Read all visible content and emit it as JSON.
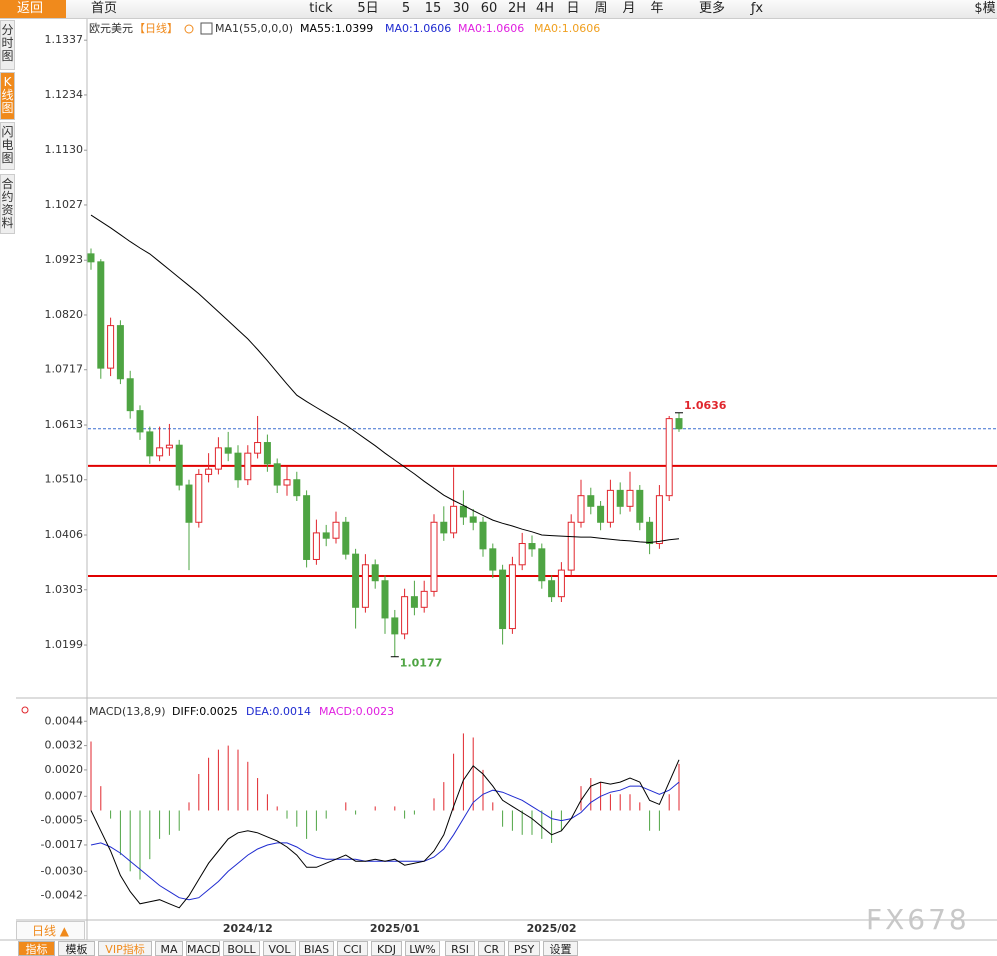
{
  "toolbar": [
    "返回",
    "首页",
    "tick",
    "5日",
    "5",
    "15",
    "30",
    "60",
    "2H",
    "4H",
    "日",
    "周",
    "月",
    "年",
    "更多",
    "ƒx",
    "$模"
  ],
  "side_tabs": [
    "分时图",
    "K线图",
    "闪电图",
    "合约资料"
  ],
  "chart_data": {
    "type": "candlestick",
    "title": "欧元美元",
    "period": "【日线】",
    "indicator": "MA1(55,0,0,0)",
    "ma0_labels": [
      {
        "text": "MA0:1.0606",
        "color": "#1f2bd0"
      },
      {
        "text": "MA0:1.0606",
        "color": "#e020e0"
      },
      {
        "text": "MA0:1.0606",
        "color": "#f0a020"
      }
    ],
    "up_color": "#e0262d",
    "down_color": "#4ea443",
    "categories": [
      null,
      null,
      null,
      null,
      null,
      null,
      null,
      null,
      null,
      null,
      null,
      null,
      null,
      null,
      null,
      null,
      "2024/12",
      null,
      null,
      null,
      null,
      null,
      null,
      null,
      null,
      null,
      null,
      null,
      null,
      null,
      null,
      "2025/01",
      null,
      null,
      null,
      null,
      null,
      null,
      null,
      null,
      null,
      null,
      null,
      null,
      null,
      null,
      null,
      "2025/02",
      null,
      null,
      null,
      null,
      null,
      null,
      null,
      null,
      null,
      null,
      null,
      null,
      null
    ],
    "open": [
      1.0935,
      1.092,
      1.072,
      1.08,
      1.07,
      1.064,
      1.06,
      1.0555,
      1.057,
      1.0575,
      1.05,
      1.043,
      1.052,
      1.053,
      1.057,
      1.056,
      1.051,
      1.056,
      1.058,
      1.054,
      1.05,
      1.051,
      1.048,
      1.036,
      1.041,
      1.04,
      1.043,
      1.037,
      1.027,
      1.035,
      1.032,
      1.025,
      1.022,
      1.029,
      1.027,
      1.03,
      1.043,
      1.041,
      1.046,
      1.044,
      1.043,
      1.038,
      1.034,
      1.023,
      1.035,
      1.039,
      1.038,
      1.032,
      1.029,
      1.034,
      1.043,
      1.048,
      1.046,
      1.043,
      1.049,
      1.046,
      1.049,
      1.043,
      1.039,
      1.048,
      1.0625
    ],
    "high": [
      1.0945,
      1.0925,
      1.0815,
      1.081,
      1.0715,
      1.065,
      1.061,
      1.061,
      1.0615,
      1.0585,
      1.051,
      1.053,
      1.056,
      1.059,
      1.06,
      1.0575,
      1.0575,
      1.063,
      1.0595,
      1.055,
      1.0535,
      1.0525,
      1.049,
      1.0435,
      1.0425,
      1.045,
      1.044,
      1.038,
      1.037,
      1.036,
      1.033,
      1.0265,
      1.0305,
      1.032,
      1.032,
      1.0445,
      1.046,
      1.0533,
      1.049,
      1.0455,
      1.044,
      1.039,
      1.035,
      1.0365,
      1.041,
      1.0405,
      1.039,
      1.033,
      1.0355,
      1.0445,
      1.051,
      1.0495,
      1.047,
      1.051,
      1.0505,
      1.0525,
      1.05,
      1.044,
      1.05,
      1.063,
      1.0636
    ],
    "low": [
      1.0905,
      1.07,
      1.0705,
      1.069,
      1.0625,
      1.0585,
      1.054,
      1.0545,
      1.0555,
      1.049,
      1.034,
      1.042,
      1.0505,
      1.052,
      1.0545,
      1.0495,
      1.05,
      1.055,
      1.0525,
      1.0485,
      1.048,
      1.047,
      1.0345,
      1.035,
      1.0385,
      1.039,
      1.036,
      1.023,
      1.026,
      1.0305,
      1.022,
      1.0177,
      1.021,
      1.0255,
      1.026,
      1.029,
      1.0395,
      1.04,
      1.0425,
      1.0415,
      1.0365,
      1.0325,
      1.02,
      1.022,
      1.034,
      1.0365,
      1.0305,
      1.028,
      1.028,
      1.033,
      1.042,
      1.0445,
      1.0415,
      1.042,
      1.0445,
      1.045,
      1.0415,
      1.037,
      1.038,
      1.047,
      1.06
    ],
    "close": [
      1.092,
      1.072,
      1.08,
      1.07,
      1.064,
      1.06,
      1.0555,
      1.057,
      1.0575,
      1.05,
      1.043,
      1.052,
      1.053,
      1.057,
      1.056,
      1.051,
      1.056,
      1.058,
      1.054,
      1.05,
      1.051,
      1.048,
      1.036,
      1.041,
      1.04,
      1.043,
      1.037,
      1.027,
      1.035,
      1.032,
      1.025,
      1.022,
      1.029,
      1.027,
      1.03,
      1.043,
      1.041,
      1.046,
      1.044,
      1.043,
      1.038,
      1.034,
      1.023,
      1.035,
      1.039,
      1.038,
      1.032,
      1.029,
      1.034,
      1.043,
      1.048,
      1.046,
      1.043,
      1.049,
      1.046,
      1.049,
      1.043,
      1.039,
      1.048,
      1.0625,
      1.0606
    ],
    "ma": {
      "name": "MA55:1.0399",
      "color": "#000000",
      "values": [
        1.1008,
        1.0996,
        1.0984,
        1.0971,
        1.0958,
        1.0946,
        1.0935,
        1.092,
        1.0905,
        1.089,
        1.0875,
        1.086,
        1.0843,
        1.0826,
        1.0809,
        1.0792,
        1.0775,
        1.0755,
        1.0734,
        1.0712,
        1.069,
        1.0669,
        1.0657,
        1.0646,
        1.0635,
        1.0624,
        1.0613,
        1.06,
        1.0587,
        1.0574,
        1.056,
        1.0547,
        1.0534,
        1.0521,
        1.0507,
        1.0494,
        1.0481,
        1.0471,
        1.0462,
        1.0452,
        1.0443,
        1.0434,
        1.0428,
        1.0423,
        1.0417,
        1.0412,
        1.0406,
        1.0405,
        1.0404,
        1.0403,
        1.0402,
        1.0402,
        1.04,
        1.0398,
        1.0396,
        1.0395,
        1.0393,
        1.0392,
        1.0394,
        1.0397,
        1.0399
      ]
    },
    "hlines": [
      1.0536,
      1.0329
    ],
    "hline_color": "#e00000",
    "last_price": 1.0606,
    "last_price_color": "#3b6fd0",
    "ylim": [
      1.0105,
      1.1375
    ],
    "yticks": [
      1.1337,
      1.1234,
      {
        "value": 1.113,
        "label": "1.1130"
      },
      1.1027,
      1.0923,
      {
        "value": 1.082,
        "label": "1.0820"
      },
      1.0717,
      1.0613,
      {
        "value": 1.051,
        "label": "1.0510"
      },
      1.0406,
      1.0303,
      1.0199
    ],
    "macd": {
      "title": "MACD(13,8,9)",
      "diff_label": "DIFF:0.0025",
      "dea_label": "DEA:0.0014",
      "hist_label": "MACD:0.0023",
      "diff_color": "#000000",
      "dea_color": "#1f2bd0",
      "hist_label_color": "#e020e0",
      "ylim": [
        -0.0054,
        0.0053
      ],
      "yticks": [
        0.0044,
        0.0032,
        {
          "value": 0.002,
          "label": "0.0020"
        },
        0.0007,
        -0.0005,
        -0.0017,
        {
          "value": -0.003,
          "label": "-0.0030"
        },
        -0.0042
      ],
      "diff": [
        0.0,
        -0.001,
        -0.002,
        -0.0032,
        -0.004,
        -0.0046,
        -0.0045,
        -0.0044,
        -0.0046,
        -0.0048,
        -0.0042,
        -0.0034,
        -0.0026,
        -0.002,
        -0.0014,
        -0.0011,
        -0.001,
        -0.0011,
        -0.0013,
        -0.0015,
        -0.0018,
        -0.0022,
        -0.0028,
        -0.0028,
        -0.0026,
        -0.0024,
        -0.0022,
        -0.0025,
        -0.0025,
        -0.0024,
        -0.0025,
        -0.0024,
        -0.0027,
        -0.0026,
        -0.0025,
        -0.002,
        -0.0012,
        0.0002,
        0.0015,
        0.0022,
        0.0018,
        0.0012,
        0.0005,
        0.0002,
        -0.0001,
        -0.0004,
        -0.0008,
        -0.0012,
        -0.001,
        -0.0004,
        0.0005,
        0.0012,
        0.0014,
        0.0013,
        0.0014,
        0.0016,
        0.0014,
        0.0005,
        0.0003,
        0.0014,
        0.0025
      ],
      "dea": [
        -0.0017,
        -0.0016,
        -0.0018,
        -0.0021,
        -0.0025,
        -0.0029,
        -0.0033,
        -0.0037,
        -0.004,
        -0.0043,
        -0.0044,
        -0.0043,
        -0.0039,
        -0.0035,
        -0.003,
        -0.0026,
        -0.0022,
        -0.0019,
        -0.0017,
        -0.0016,
        -0.0016,
        -0.0018,
        -0.0021,
        -0.0023,
        -0.0024,
        -0.0024,
        -0.0024,
        -0.0024,
        -0.0025,
        -0.0025,
        -0.0025,
        -0.0025,
        -0.0025,
        -0.0025,
        -0.0025,
        -0.0023,
        -0.0019,
        -0.0012,
        -0.0004,
        0.0004,
        0.0008,
        0.001,
        0.0009,
        0.0007,
        0.0005,
        0.0002,
        -0.0001,
        -0.0004,
        -0.0005,
        -0.0004,
        -0.0001,
        0.0004,
        0.0007,
        0.0009,
        0.001,
        0.0012,
        0.0012,
        0.001,
        0.0008,
        0.001,
        0.0014
      ],
      "hist": [
        0.0034,
        0.0012,
        -0.0004,
        -0.0022,
        -0.003,
        -0.0034,
        -0.0024,
        -0.0014,
        -0.0012,
        -0.001,
        0.0004,
        0.0018,
        0.0026,
        0.003,
        0.0032,
        0.003,
        0.0024,
        0.0016,
        0.0008,
        0.0002,
        -0.0004,
        -0.0008,
        -0.0014,
        -0.001,
        -0.0004,
        0.0,
        0.0004,
        -0.0002,
        0.0,
        0.0002,
        0.0,
        0.0002,
        -0.0004,
        -0.0002,
        0.0,
        0.0006,
        0.0014,
        0.0028,
        0.0038,
        0.0036,
        0.002,
        0.0004,
        -0.0008,
        -0.001,
        -0.0012,
        -0.0012,
        -0.0014,
        -0.0016,
        -0.001,
        0.0,
        0.0012,
        0.0016,
        0.0014,
        0.0008,
        0.0008,
        0.0008,
        0.0004,
        -0.001,
        -0.001,
        0.0008,
        0.0023
      ]
    }
  },
  "period_button": "日线 ▲",
  "bottom_tabs": [
    "指标",
    "模板",
    "VIP指标",
    "MA",
    "MACD",
    "BOLL",
    "VOL",
    "BIAS",
    "CCI",
    "KDJ",
    "LW%",
    "RSI",
    "CR",
    "PSY",
    "设置"
  ],
  "watermark": "FX678"
}
